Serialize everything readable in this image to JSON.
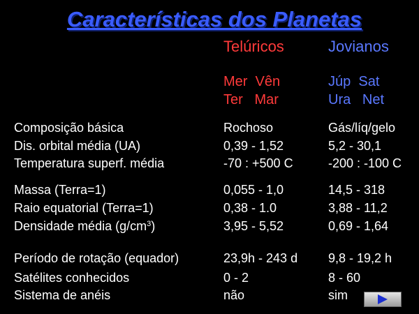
{
  "header": {
    "title": "Características dos Planetas",
    "columns": [
      "Telúricos",
      "Jovianos"
    ],
    "planets": [
      [
        "Mer  Vên",
        "Ter   Mar"
      ],
      [
        "Júp  Sat",
        "Ura   Net"
      ]
    ]
  },
  "table": {
    "rows": [
      [
        "Composição básica",
        "Rochoso",
        "Gás/líq/gelo"
      ],
      [
        "Dis. orbital média (UA)",
        "0,39 - 1,52",
        "5,2 - 30,1"
      ],
      [
        "Temperatura superf. média",
        "-70 : +500 C",
        "-200 : -100 C"
      ],
      [
        "Massa (Terra=1)",
        "0,055 - 1,0",
        "14,5 - 318"
      ],
      [
        "Raio equatorial (Terra=1)",
        "0,38 - 1.0",
        "3,88 - 11,2"
      ],
      [
        {
          "text": "Densidade média (g/cm",
          "sup": "3",
          "tail": ")"
        },
        "3,95 - 5,52",
        "0,69 - 1,64"
      ],
      [
        "Período de rotação (equador)",
        "23,9h - 243 d",
        "9,8 - 19,2 h"
      ],
      [
        "Satélites conhecidos",
        "0 - 2",
        "8 - 60"
      ],
      [
        "Sistema de anéis",
        "não",
        "sim"
      ]
    ]
  }
}
